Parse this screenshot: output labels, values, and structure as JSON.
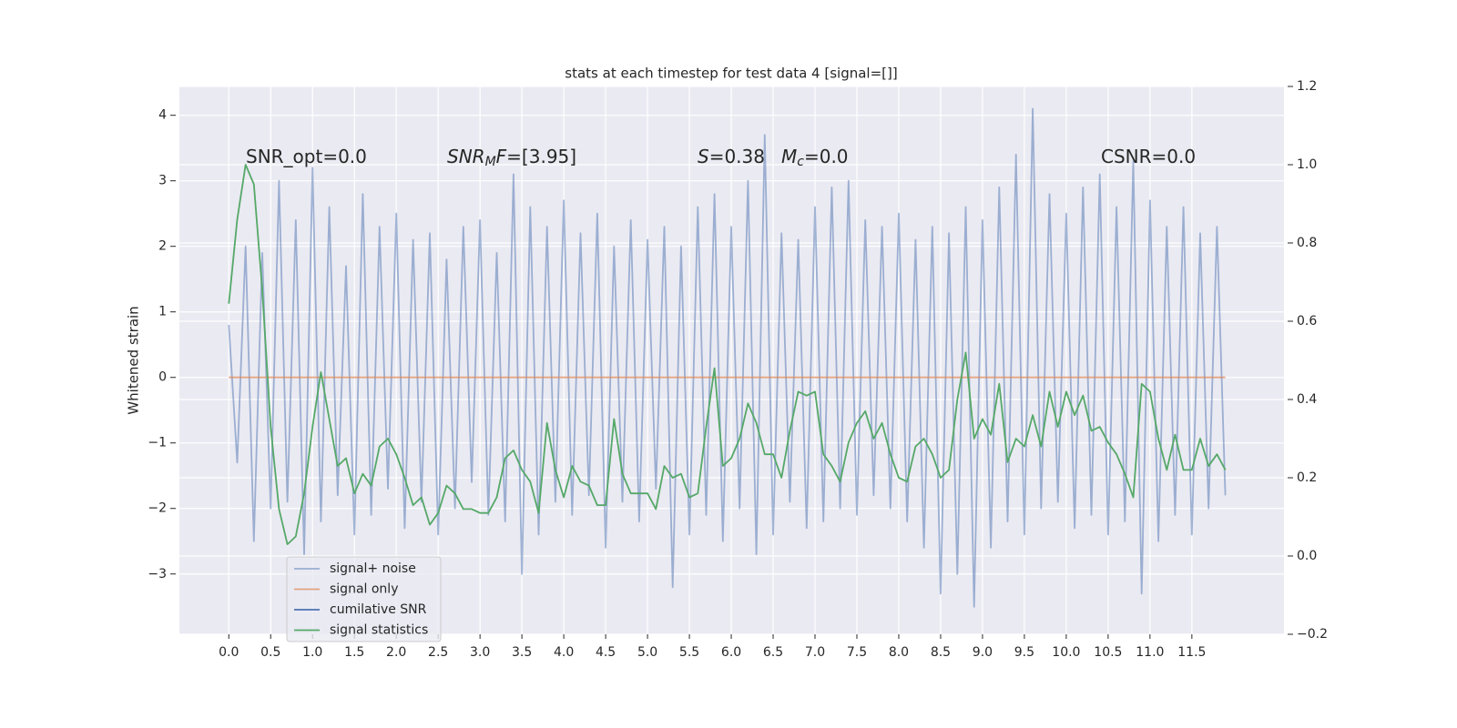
{
  "chart_data": {
    "type": "line",
    "title": "stats at each timestep for test data 4 [signal=[]]",
    "ylabel": "Whitened strain",
    "grid": true,
    "legend": "lower left",
    "xlim": [
      -0.59,
      12.6
    ],
    "ylim": [
      -3.92,
      4.44
    ],
    "y2lim": [
      -0.2,
      1.2
    ],
    "xticks": [
      {
        "value": 0,
        "label": "0.0"
      },
      0.5,
      {
        "value": 1,
        "label": "1.0"
      },
      1.5,
      {
        "value": 2,
        "label": "2.0"
      },
      2.5,
      {
        "value": 3,
        "label": "3.0"
      },
      3.5,
      {
        "value": 4,
        "label": "4.0"
      },
      4.5,
      {
        "value": 5,
        "label": "5.0"
      },
      5.5,
      {
        "value": 6,
        "label": "6.0"
      },
      6.5,
      {
        "value": 7,
        "label": "7.0"
      },
      7.5,
      {
        "value": 8,
        "label": "8.0"
      },
      8.5,
      {
        "value": 9,
        "label": "9.0"
      },
      9.5,
      {
        "value": 10,
        "label": "10.0"
      },
      10.5,
      {
        "value": 11,
        "label": "11.0"
      },
      11.5
    ],
    "yticks": [
      {
        "value": -3,
        "label": "−3"
      },
      {
        "value": -2,
        "label": "−2"
      },
      {
        "value": -1,
        "label": "−1"
      },
      0,
      1,
      2,
      3,
      4
    ],
    "y2ticks": [
      {
        "value": -0.2,
        "label": "−0.2"
      },
      {
        "value": 0,
        "label": "0.0"
      },
      0.2,
      0.4,
      0.6,
      0.8,
      {
        "value": 1,
        "label": "1.0"
      },
      1.2
    ],
    "annotations": [
      {
        "parts": [
          {
            "text": "SNR_opt=0.0",
            "style": "normal"
          }
        ]
      },
      {
        "parts": [
          {
            "text": "SNR",
            "style": "italic"
          },
          {
            "text": "M",
            "style": "sub"
          },
          {
            "text": "F",
            "style": "italic"
          },
          {
            "text": "=[3.95]",
            "style": "normal"
          }
        ]
      },
      {
        "parts": [
          {
            "text": "S",
            "style": "italic"
          },
          {
            "text": "=0.38",
            "style": "normal"
          }
        ]
      },
      {
        "parts": [
          {
            "text": "M",
            "style": "italic"
          },
          {
            "text": "c",
            "style": "sub"
          },
          {
            "text": "=0.0",
            "style": "normal"
          }
        ]
      },
      {
        "parts": [
          {
            "text": "CSNR=0.0",
            "style": "normal"
          }
        ]
      }
    ],
    "x": [
      0,
      0.1,
      0.2,
      0.3,
      0.4,
      0.5,
      0.6,
      0.7,
      0.8,
      0.9,
      1,
      1.1,
      1.2,
      1.3,
      1.4,
      1.5,
      1.6,
      1.7,
      1.8,
      1.9,
      2,
      2.1,
      2.2,
      2.3,
      2.4,
      2.5,
      2.6,
      2.7,
      2.8,
      2.9,
      3,
      3.1,
      3.2,
      3.3,
      3.4,
      3.5,
      3.6,
      3.7,
      3.8,
      3.9,
      4,
      4.1,
      4.2,
      4.3,
      4.4,
      4.5,
      4.6,
      4.7,
      4.8,
      4.9,
      5,
      5.1,
      5.2,
      5.3,
      5.4,
      5.5,
      5.6,
      5.7,
      5.8,
      5.9,
      6,
      6.1,
      6.2,
      6.3,
      6.4,
      6.5,
      6.6,
      6.7,
      6.8,
      6.9,
      7,
      7.1,
      7.2,
      7.3,
      7.4,
      7.5,
      7.6,
      7.7,
      7.8,
      7.9,
      8,
      8.1,
      8.2,
      8.3,
      8.4,
      8.5,
      8.6,
      8.7,
      8.8,
      8.9,
      9,
      9.1,
      9.2,
      9.3,
      9.4,
      9.5,
      9.6,
      9.7,
      9.8,
      9.9,
      10,
      10.1,
      10.2,
      10.3,
      10.4,
      10.5,
      10.6,
      10.7,
      10.8,
      10.9,
      11,
      11.1,
      11.2,
      11.3,
      11.4,
      11.5,
      11.6,
      11.7,
      11.8,
      11.9
    ],
    "series": [
      {
        "name": "signal+ noise",
        "color": "#4c72b0",
        "opacity": 0.5,
        "axis": "y",
        "values": [
          0.8,
          -1.3,
          2.0,
          -2.5,
          1.9,
          -2.0,
          3.0,
          -1.9,
          2.4,
          -2.7,
          3.2,
          -2.2,
          2.6,
          -1.8,
          1.7,
          -2.4,
          2.8,
          -2.1,
          2.3,
          -1.7,
          2.5,
          -2.3,
          2.1,
          -1.9,
          2.2,
          -2.4,
          1.8,
          -2.0,
          2.3,
          -1.6,
          2.4,
          -2.1,
          1.9,
          -2.2,
          3.1,
          -3.0,
          2.6,
          -2.4,
          2.3,
          -1.9,
          2.7,
          -2.1,
          2.2,
          -1.8,
          2.5,
          -2.6,
          2.0,
          -1.9,
          2.4,
          -2.2,
          2.1,
          -1.7,
          2.3,
          -3.2,
          2.0,
          -2.4,
          2.6,
          -2.1,
          2.8,
          -2.5,
          2.3,
          -2.0,
          3.0,
          -2.7,
          3.7,
          -2.4,
          2.2,
          -1.9,
          2.1,
          -2.3,
          2.6,
          -2.2,
          2.9,
          -2.0,
          3.0,
          -2.1,
          2.4,
          -1.8,
          2.3,
          -2.0,
          2.5,
          -2.2,
          2.1,
          -2.6,
          2.3,
          -3.3,
          2.2,
          -3.0,
          2.6,
          -3.5,
          2.4,
          -2.6,
          2.9,
          -2.2,
          3.4,
          -2.4,
          4.1,
          -2.0,
          2.8,
          -1.9,
          2.5,
          -2.3,
          2.9,
          -2.1,
          3.1,
          -2.4,
          2.6,
          -2.2,
          3.3,
          -3.3,
          2.7,
          -2.5,
          2.3,
          -2.1,
          2.6,
          -2.4,
          2.2,
          -2.0,
          2.3,
          -1.8
        ]
      },
      {
        "name": "signal only",
        "color": "#dd8452",
        "opacity": 0.7,
        "axis": "y",
        "values": [
          0,
          0,
          0,
          0,
          0,
          0,
          0,
          0,
          0,
          0,
          0,
          0,
          0,
          0,
          0,
          0,
          0,
          0,
          0,
          0,
          0,
          0,
          0,
          0,
          0,
          0,
          0,
          0,
          0,
          0,
          0,
          0,
          0,
          0,
          0,
          0,
          0,
          0,
          0,
          0,
          0,
          0,
          0,
          0,
          0,
          0,
          0,
          0,
          0,
          0,
          0,
          0,
          0,
          0,
          0,
          0,
          0,
          0,
          0,
          0,
          0,
          0,
          0,
          0,
          0,
          0,
          0,
          0,
          0,
          0,
          0,
          0,
          0,
          0,
          0,
          0,
          0,
          0,
          0,
          0,
          0,
          0,
          0,
          0,
          0,
          0,
          0,
          0,
          0,
          0,
          0,
          0,
          0,
          0,
          0,
          0,
          0,
          0,
          0,
          0,
          0,
          0,
          0,
          0,
          0,
          0,
          0,
          0,
          0,
          0,
          0,
          0,
          0,
          0,
          0,
          0,
          0,
          0,
          0,
          0
        ]
      },
      {
        "name": "cumilative SNR",
        "color": "#4c72b0",
        "opacity": 1,
        "axis": "y2",
        "values": [
          null,
          null,
          null,
          null,
          null,
          null,
          null,
          null,
          null,
          null,
          null,
          null,
          null,
          null,
          null,
          null,
          null,
          null,
          null,
          null,
          null,
          null,
          null,
          null,
          null,
          null,
          null,
          null,
          null,
          null,
          null,
          null,
          null,
          null,
          null,
          null,
          null,
          null,
          null,
          null,
          null,
          null,
          null,
          null,
          null,
          null,
          null,
          null,
          null,
          null,
          null,
          null,
          null,
          null,
          null,
          null,
          null,
          null,
          null,
          null,
          null,
          null,
          null,
          null,
          null,
          null,
          null,
          null,
          null,
          null,
          null,
          null,
          null,
          null,
          null,
          null,
          null,
          null,
          null,
          null,
          null,
          null,
          null,
          null,
          null,
          null,
          null,
          null,
          null,
          null,
          null,
          null,
          null,
          null,
          null,
          null,
          null,
          null,
          null,
          null,
          null,
          null,
          null,
          null,
          null,
          null,
          null,
          null,
          null,
          null,
          null,
          null,
          null,
          null,
          null,
          null,
          null,
          null,
          null,
          null
        ]
      },
      {
        "name": "signal statistics",
        "color": "#55a868",
        "opacity": 1,
        "axis": "y2",
        "values": [
          0.645,
          0.86,
          1.0,
          0.95,
          0.68,
          0.33,
          0.12,
          0.03,
          0.05,
          0.16,
          0.33,
          0.47,
          0.35,
          0.23,
          0.25,
          0.16,
          0.21,
          0.18,
          0.28,
          0.3,
          0.26,
          0.2,
          0.13,
          0.15,
          0.08,
          0.11,
          0.18,
          0.16,
          0.12,
          0.12,
          0.11,
          0.11,
          0.15,
          0.25,
          0.27,
          0.22,
          0.19,
          0.11,
          0.34,
          0.22,
          0.15,
          0.23,
          0.19,
          0.18,
          0.13,
          0.13,
          0.35,
          0.21,
          0.16,
          0.16,
          0.16,
          0.12,
          0.23,
          0.2,
          0.21,
          0.15,
          0.16,
          0.33,
          0.48,
          0.23,
          0.25,
          0.3,
          0.39,
          0.34,
          0.26,
          0.26,
          0.2,
          0.32,
          0.42,
          0.41,
          0.42,
          0.26,
          0.23,
          0.19,
          0.29,
          0.34,
          0.37,
          0.3,
          0.34,
          0.26,
          0.2,
          0.19,
          0.28,
          0.3,
          0.26,
          0.2,
          0.22,
          0.4,
          0.52,
          0.3,
          0.35,
          0.31,
          0.44,
          0.24,
          0.3,
          0.28,
          0.36,
          0.28,
          0.42,
          0.33,
          0.42,
          0.36,
          0.41,
          0.32,
          0.33,
          0.29,
          0.26,
          0.21,
          0.15,
          0.44,
          0.42,
          0.3,
          0.22,
          0.31,
          0.22,
          0.22,
          0.3,
          0.23,
          0.26,
          0.22
        ]
      }
    ]
  }
}
